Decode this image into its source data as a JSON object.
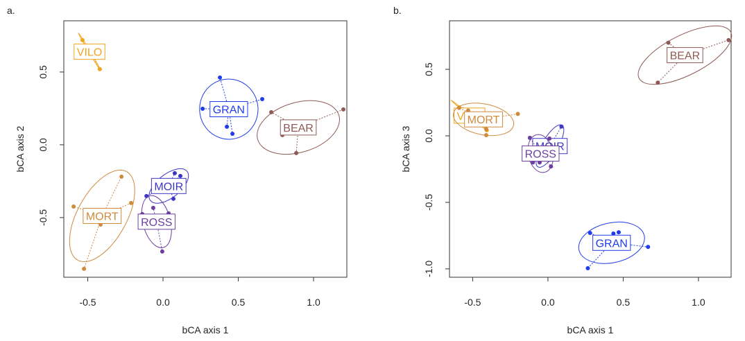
{
  "chart_data": [
    {
      "type": "scatter",
      "panel_label": "a.",
      "xlabel": "bCA axis 1",
      "ylabel": "bCA axis 2",
      "xlim": [
        -0.659,
        1.221
      ],
      "ylim": [
        -0.91,
        0.852
      ],
      "xticks": [
        -0.5,
        {
          "value": 0,
          "label": "0.0"
        },
        0.5,
        {
          "value": 1,
          "label": "1.0"
        }
      ],
      "yticks": [
        -0.5,
        {
          "value": 0,
          "label": "0.0"
        },
        0.5
      ],
      "series": [
        {
          "name": "VILO",
          "color": "#f2a41f",
          "x": [
            -0.535,
            -0.51,
            -0.42
          ],
          "y": [
            0.719,
            0.68,
            0.52
          ]
        },
        {
          "name": "GRAN",
          "color": "#1f3de8",
          "x": [
            0.378,
            0.659,
            0.263,
            0.424,
            0.461
          ],
          "y": [
            0.462,
            0.314,
            0.248,
            0.124,
            0.076
          ]
        },
        {
          "name": "BEAR",
          "color": "#8e5a55",
          "x": [
            0.719,
            1.198,
            0.793,
            0.885
          ],
          "y": [
            0.224,
            0.243,
            0.067,
            -0.057
          ]
        },
        {
          "name": "MOIR",
          "color": "#3d35c8",
          "x": [
            0.078,
            0.115,
            0.069,
            -0.11
          ],
          "y": [
            -0.195,
            -0.214,
            -0.371,
            -0.352
          ]
        },
        {
          "name": "ROSS",
          "color": "#6b3fa0",
          "x": [
            -0.138,
            -0.065,
            0.037,
            -0.005
          ],
          "y": [
            -0.476,
            -0.433,
            -0.471,
            -0.733
          ]
        },
        {
          "name": "MORT",
          "color": "#cf8a3c",
          "x": [
            -0.276,
            -0.212,
            -0.594,
            -0.415,
            -0.525
          ],
          "y": [
            -0.219,
            -0.4,
            -0.424,
            -0.548,
            -0.852
          ]
        }
      ]
    },
    {
      "type": "scatter",
      "panel_label": "b.",
      "xlabel": "bCA axis 1",
      "ylabel": "bCA axis 3",
      "xlim": [
        -0.654,
        1.217
      ],
      "ylim": [
        -1.063,
        0.865
      ],
      "xticks": [
        -0.5,
        {
          "value": 0,
          "label": "0.0"
        },
        0.5,
        {
          "value": 1,
          "label": "1.0"
        }
      ],
      "yticks": [
        {
          "value": -1,
          "label": "-1.0"
        },
        -0.5,
        {
          "value": 0,
          "label": "0.0"
        },
        0.5
      ],
      "series": [
        {
          "name": "VILO",
          "color": "#f2a41f",
          "x": [
            -0.59,
            -0.567,
            -0.406
          ],
          "y": [
            0.214,
            0.2,
            0.042
          ]
        },
        {
          "name": "MORT",
          "color": "#cf8a3c",
          "x": [
            -0.59,
            -0.2,
            -0.41,
            -0.41,
            -0.53
          ],
          "y": [
            0.21,
            0.165,
            0.05,
            0.005,
            0.19
          ]
        },
        {
          "name": "BEAR",
          "color": "#8e5a55",
          "x": [
            0.8,
            1.2,
            0.73
          ],
          "y": [
            0.7,
            0.72,
            0.4
          ]
        },
        {
          "name": "MOIR",
          "color": "#3d35c8",
          "x": [
            0.09,
            0.01,
            -0.06
          ],
          "y": [
            0.07,
            -0.18,
            -0.12
          ]
        },
        {
          "name": "ROSS",
          "color": "#6b3fa0",
          "x": [
            -0.12,
            -0.1,
            -0.055,
            0.02,
            0.01
          ],
          "y": [
            -0.015,
            -0.2,
            -0.2,
            -0.23,
            -0.02
          ]
        },
        {
          "name": "GRAN",
          "color": "#1f3de8",
          "x": [
            0.28,
            0.435,
            0.47,
            0.665,
            0.265
          ],
          "y": [
            -0.73,
            -0.735,
            -0.725,
            -0.835,
            -0.995
          ]
        }
      ]
    }
  ]
}
